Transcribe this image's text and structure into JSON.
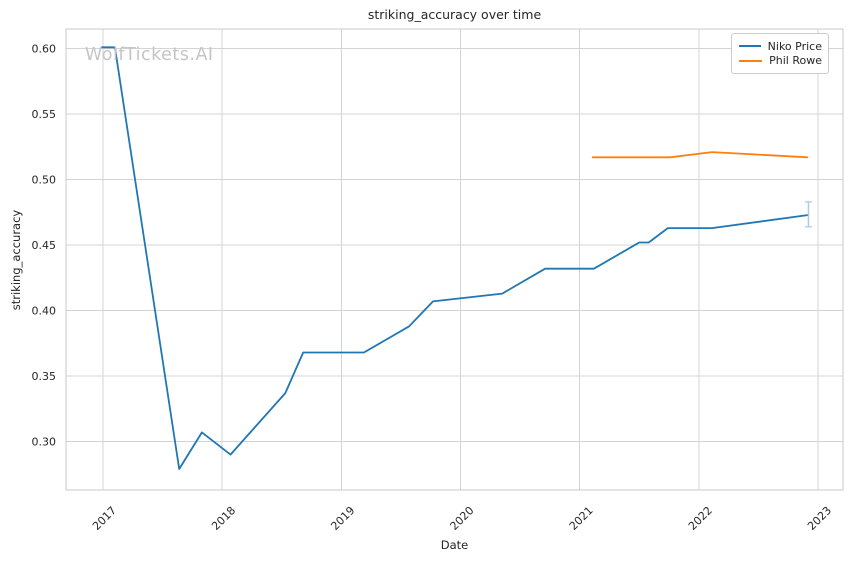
{
  "watermark": {
    "text": "WolfTickets.AI",
    "color": "#c5c5c5"
  },
  "chart_data": {
    "type": "line",
    "title": "striking_accuracy over time",
    "xlabel": "Date",
    "ylabel": "striking_accuracy",
    "grid": true,
    "legend_position": "upper right",
    "xlim": [
      2016.69,
      2023.21
    ],
    "ylim": [
      0.263,
      0.615
    ],
    "x_ticks": [
      2017,
      2018,
      2019,
      2020,
      2021,
      2022,
      2023
    ],
    "x_tick_labels": [
      "2017",
      "2018",
      "2019",
      "2020",
      "2021",
      "2022",
      "2023"
    ],
    "y_ticks": [
      0.3,
      0.35,
      0.4,
      0.45,
      0.5,
      0.55,
      0.6
    ],
    "y_tick_labels": [
      "0.30",
      "0.35",
      "0.40",
      "0.45",
      "0.50",
      "0.55",
      "0.60"
    ],
    "grid_color": "#d4d4d4",
    "spine_color": "#c9c9c9",
    "series": [
      {
        "name": "Niko Price",
        "color": "#1f77b4",
        "points": [
          [
            2016.99,
            0.601
          ],
          [
            2017.1,
            0.601
          ],
          [
            2017.64,
            0.279
          ],
          [
            2017.83,
            0.307
          ],
          [
            2018.07,
            0.29
          ],
          [
            2018.53,
            0.337
          ],
          [
            2018.68,
            0.368
          ],
          [
            2019.19,
            0.368
          ],
          [
            2019.57,
            0.388
          ],
          [
            2019.77,
            0.407
          ],
          [
            2020.35,
            0.413
          ],
          [
            2020.71,
            0.432
          ],
          [
            2021.12,
            0.432
          ],
          [
            2021.5,
            0.452
          ],
          [
            2021.58,
            0.452
          ],
          [
            2021.74,
            0.463
          ],
          [
            2022.11,
            0.463
          ],
          [
            2022.92,
            0.473
          ]
        ],
        "errorbar": {
          "x": 2022.92,
          "low": 0.464,
          "high": 0.483,
          "color": "#a9cce3"
        }
      },
      {
        "name": "Phil Rowe",
        "color": "#ff7f0e",
        "points": [
          [
            2021.11,
            0.517
          ],
          [
            2021.76,
            0.517
          ],
          [
            2022.11,
            0.521
          ],
          [
            2022.91,
            0.517
          ]
        ]
      }
    ]
  }
}
